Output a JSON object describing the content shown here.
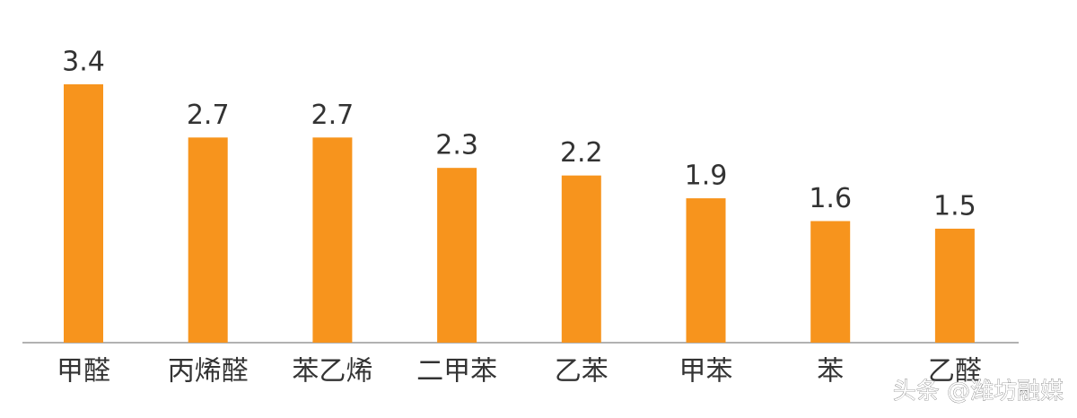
{
  "chart_data": {
    "type": "bar",
    "categories": [
      "甲醛",
      "丙烯醛",
      "苯乙烯",
      "二甲苯",
      "乙苯",
      "甲苯",
      "苯",
      "乙醛"
    ],
    "values": [
      3.4,
      2.7,
      2.7,
      2.3,
      2.2,
      1.9,
      1.6,
      1.5
    ],
    "color": "#f7941d",
    "watermark": "头条 @潍坊融媒"
  }
}
